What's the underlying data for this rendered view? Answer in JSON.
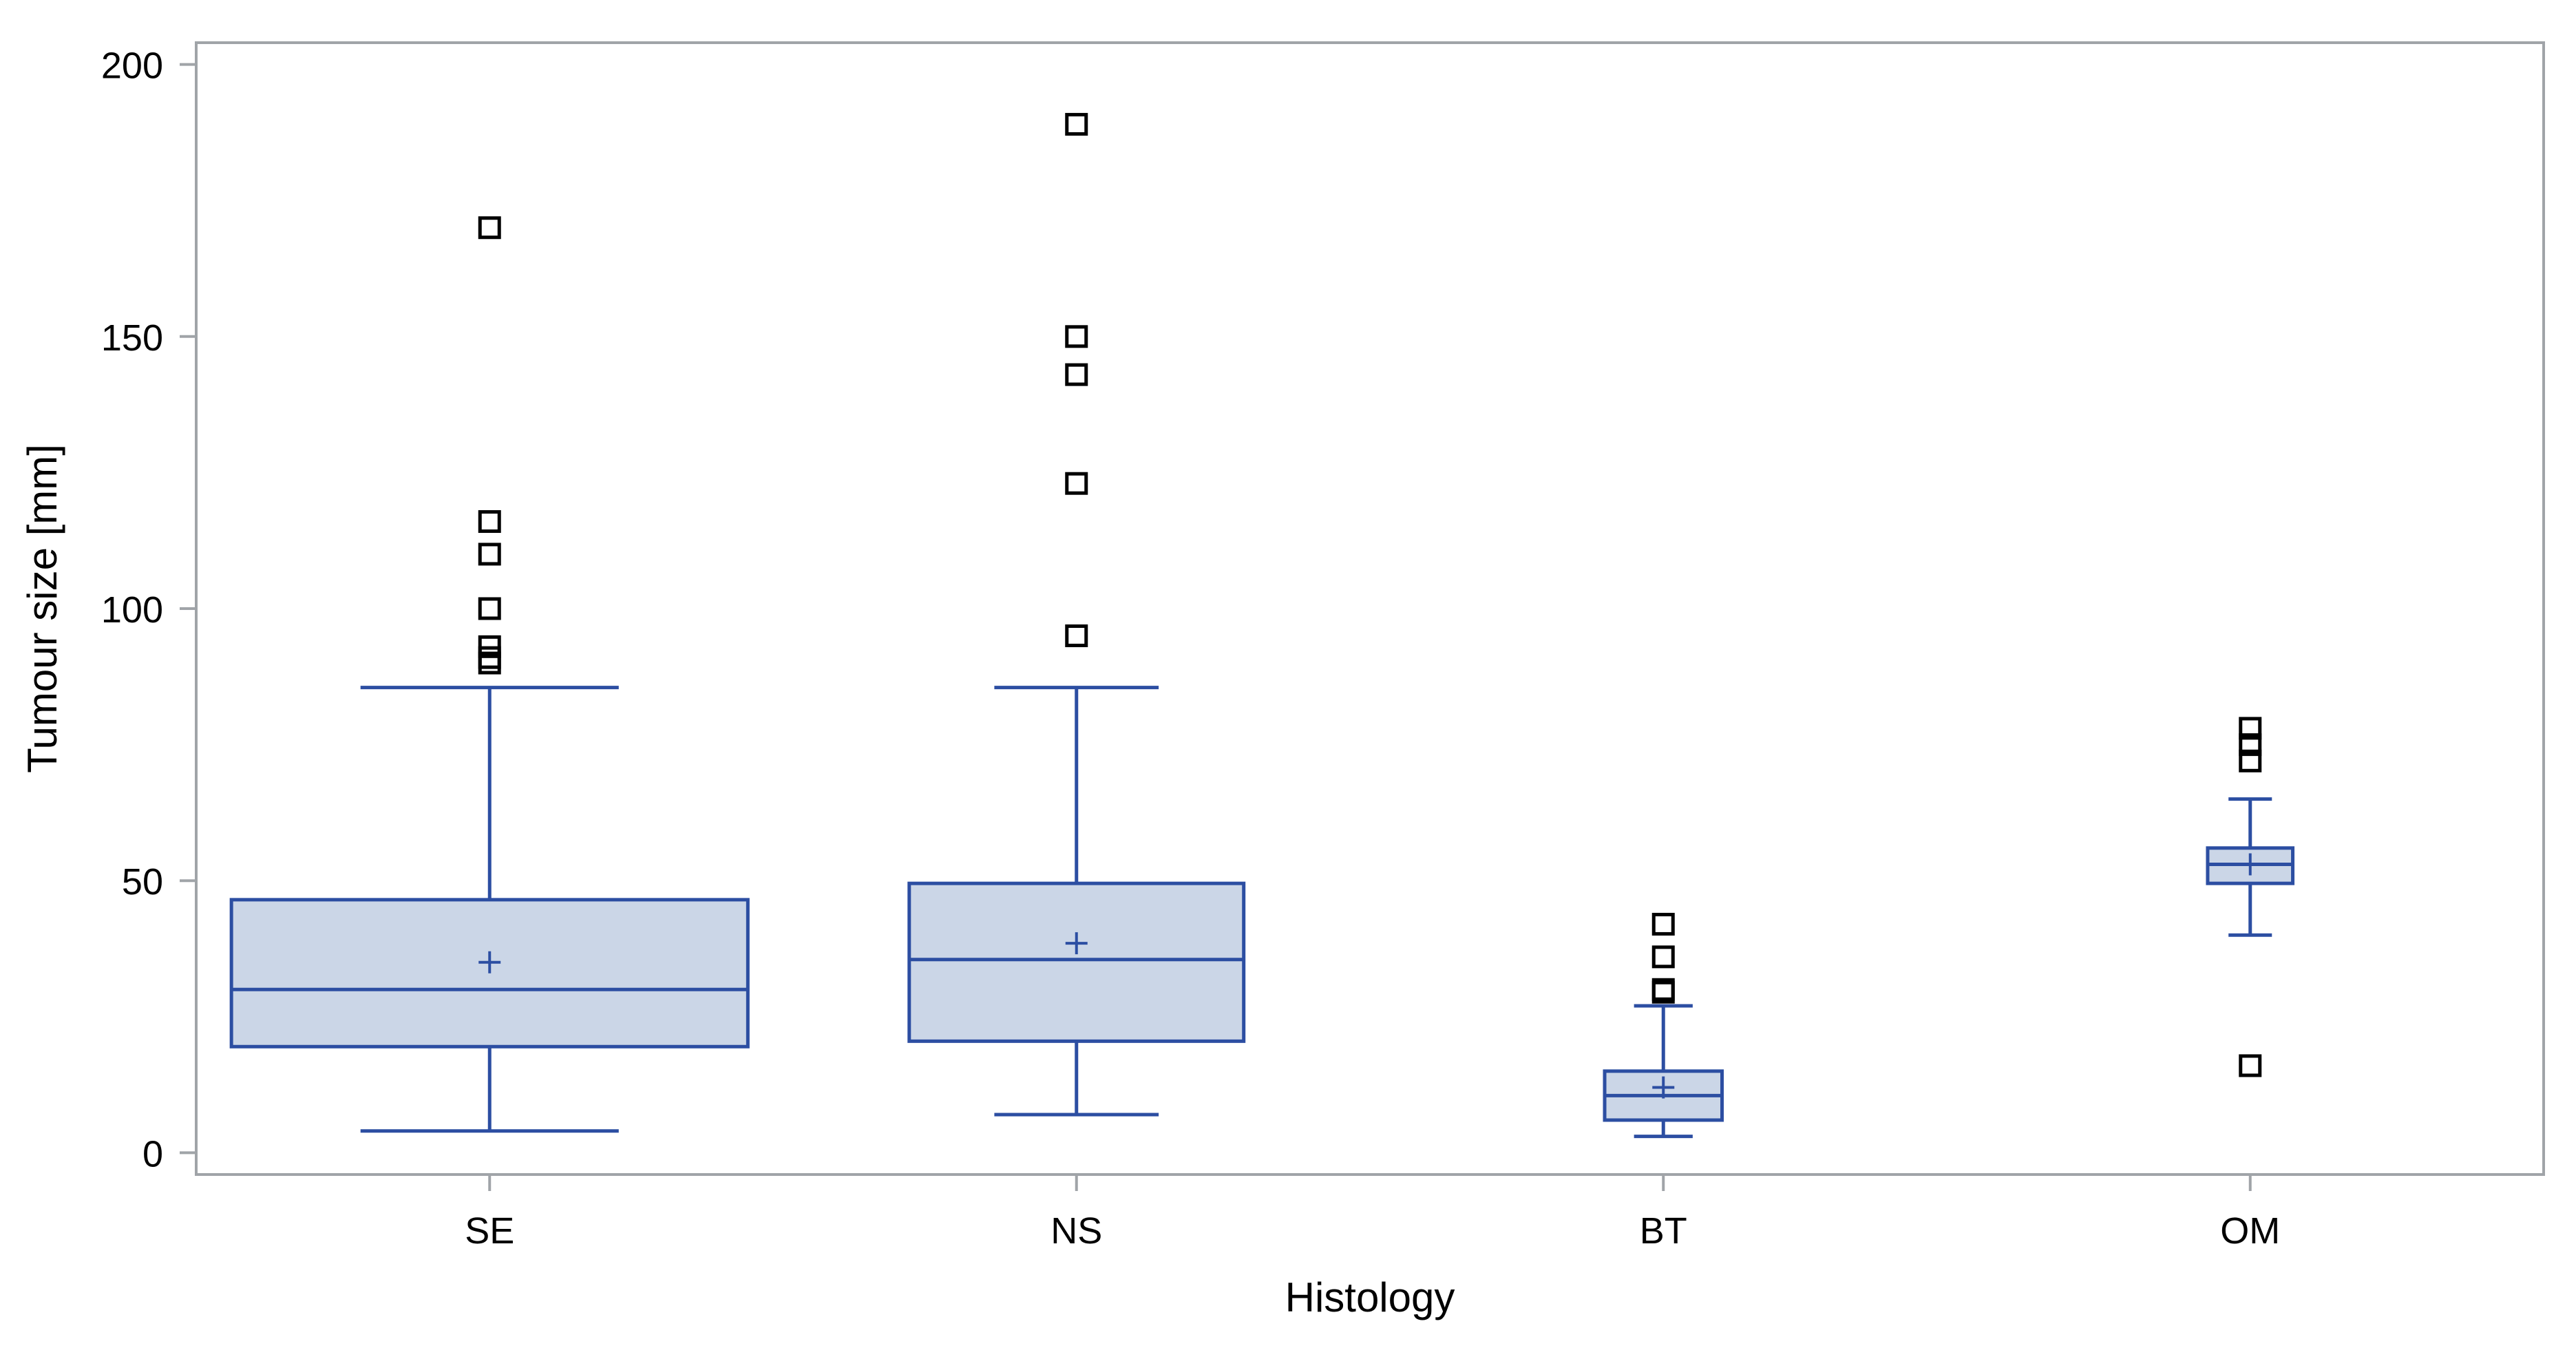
{
  "chart_data": {
    "type": "box",
    "title": "",
    "xlabel": "Histology",
    "ylabel": "Tumour size [mm]",
    "ylim": [
      -4,
      204
    ],
    "yticks": [
      0,
      50,
      100,
      150,
      200
    ],
    "grid": false,
    "legend": "none",
    "categories": [
      "SE",
      "NS",
      "BT",
      "OM"
    ],
    "boxes": [
      {
        "category": "SE",
        "min": 4,
        "q1": 19.5,
        "median": 30,
        "q3": 46.5,
        "max": 85.5,
        "mean": 35,
        "outliers": [
          170,
          116,
          110,
          100,
          93,
          91,
          90
        ]
      },
      {
        "category": "NS",
        "min": 7,
        "q1": 20.5,
        "median": 35.5,
        "q3": 49.5,
        "max": 85.5,
        "mean": 38.5,
        "outliers": [
          189,
          150,
          143,
          123,
          95
        ]
      },
      {
        "category": "BT",
        "min": 3,
        "q1": 6,
        "median": 10.5,
        "q3": 15,
        "max": 27,
        "mean": 12,
        "outliers": [
          42,
          36,
          30,
          29.5
        ]
      },
      {
        "category": "OM",
        "min": 40,
        "q1": 49.5,
        "median": 53,
        "q3": 56,
        "max": 65,
        "mean": 53,
        "outliers": [
          78,
          75,
          72,
          16
        ]
      }
    ],
    "colors": {
      "box_fill": "#cbd6e7",
      "box_stroke": "#2c4ea2",
      "outlier_stroke": "#000000",
      "frame": "#a0a4a8",
      "axis_text": "#000000"
    }
  }
}
